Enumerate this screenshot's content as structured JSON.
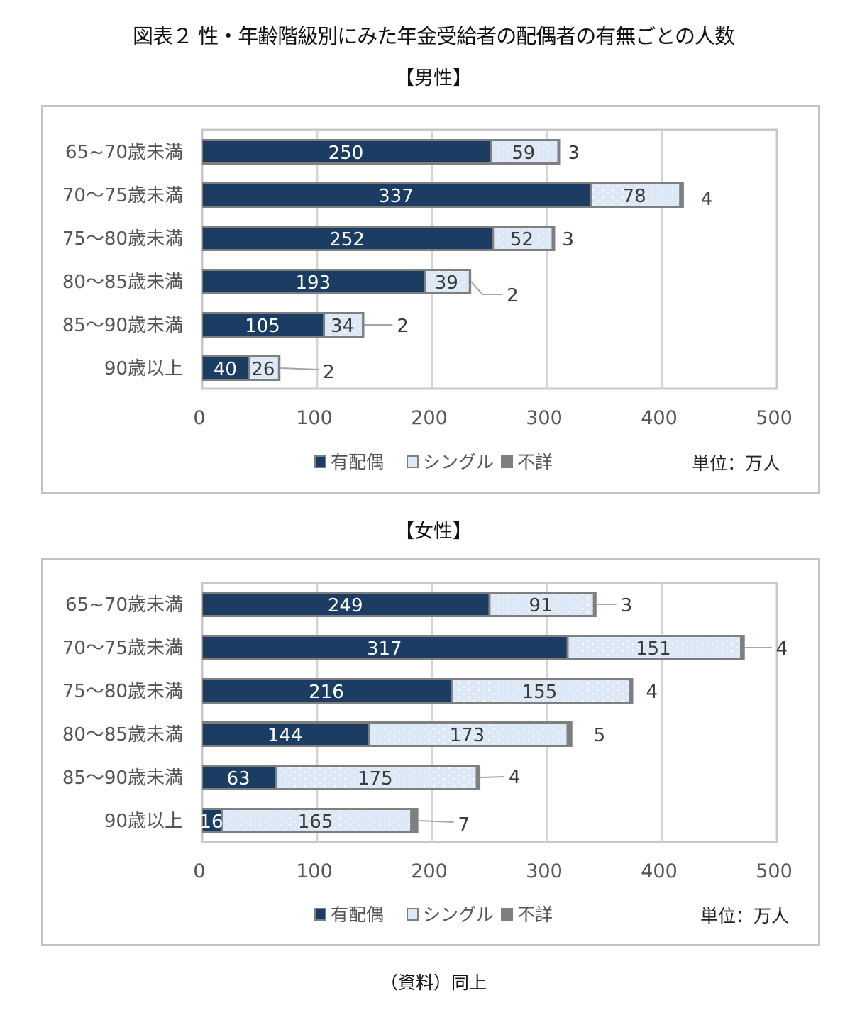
{
  "title": "図表２ 性・年齢階級別にみた年金受給者の配偶者の有無ごとの人数",
  "footer": "（資料）同上",
  "colors": {
    "married": "#1b3c63",
    "single": "#dce8f5",
    "unknown": "#7f7f7f",
    "grid": "#d4d4d4",
    "frame": "#c3c3c3"
  },
  "chart_data": [
    {
      "type": "bar",
      "orientation": "horizontal",
      "stacked": true,
      "title": "【男性】",
      "categories": [
        "65~70歳未満",
        "70～75歳未満",
        "75～80歳未満",
        "80～85歳未満",
        "85～90歳未満",
        "90歳以上"
      ],
      "series": [
        {
          "name": "有配偶",
          "values": [
            250,
            337,
            252,
            193,
            105,
            40
          ]
        },
        {
          "name": "シングル",
          "values": [
            59,
            78,
            52,
            39,
            34,
            26
          ]
        },
        {
          "name": "不詳",
          "values": [
            3,
            4,
            3,
            2,
            2,
            2
          ]
        }
      ],
      "xlim": [
        0,
        500
      ],
      "xticks": [
        "0",
        "100",
        "200",
        "300",
        "400",
        "500"
      ],
      "grid": true,
      "legend": "bottom-center",
      "unit_note": "単位：万人"
    },
    {
      "type": "bar",
      "orientation": "horizontal",
      "stacked": true,
      "title": "【女性】",
      "categories": [
        "65~70歳未満",
        "70～75歳未満",
        "75～80歳未満",
        "80～85歳未満",
        "85～90歳未満",
        "90歳以上"
      ],
      "series": [
        {
          "name": "有配偶",
          "values": [
            249,
            317,
            216,
            144,
            63,
            16
          ]
        },
        {
          "name": "シングル",
          "values": [
            91,
            151,
            155,
            173,
            175,
            165
          ]
        },
        {
          "name": "不詳",
          "values": [
            3,
            4,
            4,
            5,
            4,
            7
          ]
        }
      ],
      "xlim": [
        0,
        500
      ],
      "xticks": [
        "0",
        "100",
        "200",
        "300",
        "400",
        "500"
      ],
      "grid": true,
      "legend": "bottom-center",
      "unit_note": "単位：万人"
    }
  ]
}
